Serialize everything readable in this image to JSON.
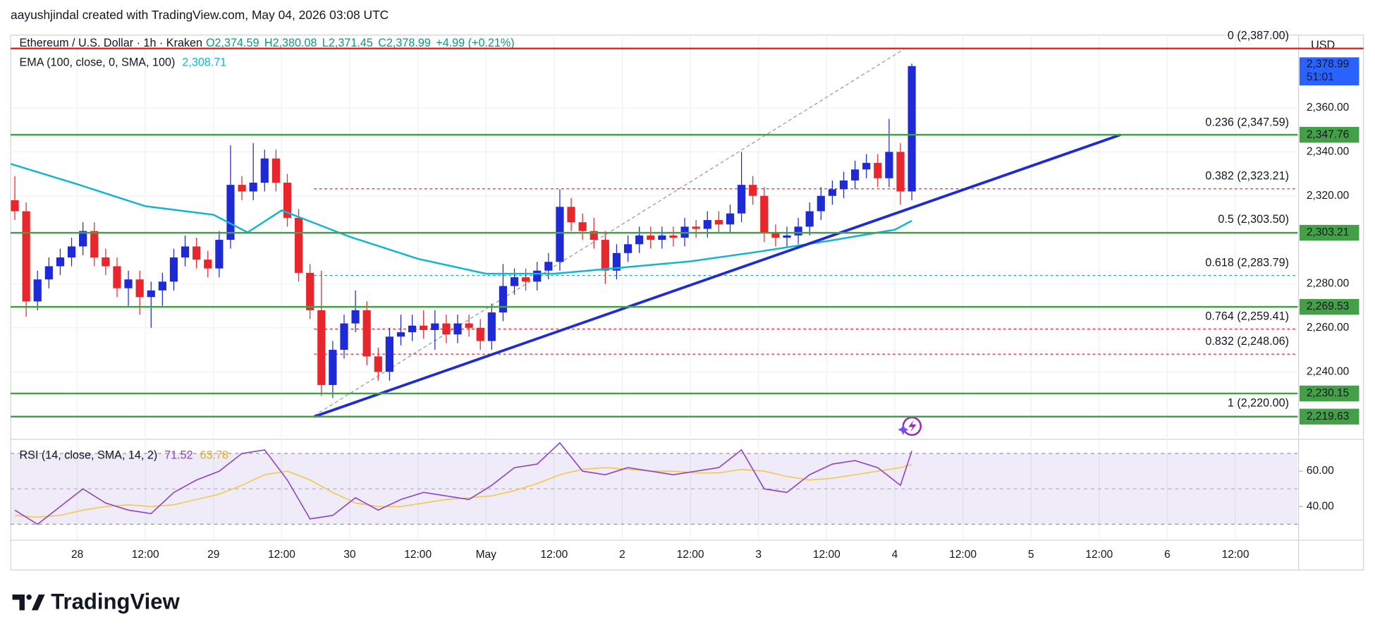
{
  "chart_data": {
    "type": "candlestick",
    "author": "aayushjindal created with TradingView.com, May 04, 2026 03:08 UTC",
    "brand": "TradingView",
    "currency": "USD",
    "header": {
      "symbol": "Ethereum / U.S. Dollar · 1h · Kraken",
      "ohlc": [
        "O2,374.59",
        "H2,380.08",
        "L2,371.45",
        "C2,378.99",
        "+4.99 (+0.21%)"
      ]
    },
    "up_color": "#1e2ad6",
    "down_color": "#e8262b",
    "xlim": [
      -11.74,
      214.98
    ],
    "xticks": [
      {
        "value": 0,
        "label": "28"
      },
      {
        "value": 12,
        "label": "12:00"
      },
      {
        "value": 24,
        "label": "29"
      },
      {
        "value": 36,
        "label": "12:00"
      },
      {
        "value": 48,
        "label": "30"
      },
      {
        "value": 60,
        "label": "12:00"
      },
      {
        "value": 72,
        "label": "May"
      },
      {
        "value": 84,
        "label": "12:00"
      },
      {
        "value": 96,
        "label": "2"
      },
      {
        "value": 108,
        "label": "12:00"
      },
      {
        "value": 120,
        "label": "3"
      },
      {
        "value": 132,
        "label": "12:00"
      },
      {
        "value": 144,
        "label": "4"
      },
      {
        "value": 156,
        "label": "12:00"
      },
      {
        "value": 168,
        "label": "5"
      },
      {
        "value": 180,
        "label": "12:00"
      },
      {
        "value": 192,
        "label": "6"
      },
      {
        "value": 204,
        "label": "12:00"
      }
    ],
    "ylim": [
      2209.7,
      2393.1
    ],
    "yticks": [
      {
        "value": 2240,
        "label": "2,240.00"
      },
      {
        "value": 2260,
        "label": "2,260.00"
      },
      {
        "value": 2280,
        "label": "2,280.00"
      },
      {
        "value": 2320,
        "label": "2,320.00"
      },
      {
        "value": 2340,
        "label": "2,340.00"
      },
      {
        "value": 2360,
        "label": "2,360.00"
      }
    ],
    "x": [
      -11,
      -9,
      -7,
      -5,
      -3,
      -1,
      1,
      3,
      5,
      7,
      9,
      11,
      13,
      15,
      17,
      19,
      21,
      23,
      25,
      27,
      29,
      31,
      33,
      35,
      37,
      39,
      41,
      43,
      45,
      47,
      49,
      51,
      53,
      55,
      57,
      59,
      61,
      63,
      65,
      67,
      69,
      71,
      73,
      75,
      77,
      79,
      81,
      83,
      85,
      87,
      89,
      91,
      93,
      95,
      97,
      99,
      101,
      103,
      105,
      107,
      109,
      111,
      113,
      115,
      117,
      119,
      121,
      123,
      125,
      127,
      129,
      131,
      133,
      135,
      137,
      139,
      141,
      143,
      145,
      147
    ],
    "open": [
      2318,
      2313,
      2272,
      2282,
      2288,
      2292,
      2297,
      2304,
      2292,
      2288,
      2278,
      2282,
      2274,
      2277,
      2281,
      2292,
      2297,
      2291,
      2287,
      2300,
      2325,
      2322,
      2326,
      2337,
      2326,
      2310,
      2285,
      2268,
      2234,
      2250,
      2262,
      2268,
      2247,
      2240,
      2256,
      2258,
      2261,
      2259,
      2262,
      2257,
      2262,
      2260,
      2254,
      2267,
      2279,
      2283,
      2281,
      2286,
      2290,
      2315,
      2308,
      2304,
      2300,
      2286,
      2294,
      2298,
      2302,
      2300,
      2302,
      2301,
      2306,
      2305,
      2309,
      2307,
      2312,
      2325,
      2320,
      2303,
      2301,
      2302,
      2306,
      2313,
      2320,
      2323,
      2327,
      2332,
      2335,
      2328,
      2340,
      2322
    ],
    "high": [
      2329,
      2317,
      2286,
      2292,
      2296,
      2301,
      2308,
      2308,
      2296,
      2292,
      2286,
      2286,
      2281,
      2285,
      2296,
      2302,
      2301,
      2295,
      2304,
      2343,
      2329,
      2344,
      2341,
      2341,
      2330,
      2314,
      2289,
      2286,
      2254,
      2266,
      2277,
      2272,
      2251,
      2260,
      2266,
      2266,
      2268,
      2268,
      2266,
      2266,
      2266,
      2264,
      2271,
      2289,
      2287,
      2287,
      2290,
      2294,
      2323,
      2319,
      2312,
      2310,
      2304,
      2298,
      2302,
      2306,
      2306,
      2306,
      2306,
      2310,
      2309,
      2313,
      2313,
      2316,
      2340,
      2329,
      2324,
      2307,
      2306,
      2310,
      2317,
      2324,
      2327,
      2331,
      2336,
      2339,
      2339,
      2355,
      2344,
      2380.08
    ],
    "low": [
      2309,
      2265,
      2268,
      2278,
      2284,
      2288,
      2293,
      2288,
      2284,
      2274,
      2270,
      2266,
      2260,
      2270,
      2277,
      2288,
      2287,
      2283,
      2283,
      2296,
      2318,
      2318,
      2322,
      2322,
      2306,
      2281,
      2264,
      2229,
      2228,
      2246,
      2258,
      2243,
      2236,
      2236,
      2252,
      2254,
      2255,
      2250,
      2253,
      2253,
      2256,
      2250,
      2250,
      2263,
      2275,
      2277,
      2277,
      2282,
      2286,
      2304,
      2300,
      2296,
      2280,
      2282,
      2290,
      2294,
      2296,
      2296,
      2297,
      2297,
      2301,
      2301,
      2303,
      2303,
      2308,
      2316,
      2299,
      2297,
      2297,
      2298,
      2302,
      2309,
      2316,
      2319,
      2323,
      2328,
      2324,
      2324,
      2316,
      2318
    ],
    "close": [
      2313,
      2272,
      2282,
      2288,
      2292,
      2297,
      2304,
      2292,
      2288,
      2278,
      2282,
      2274,
      2277,
      2281,
      2292,
      2297,
      2291,
      2287,
      2300,
      2325,
      2322,
      2326,
      2337,
      2326,
      2310,
      2285,
      2268,
      2234,
      2250,
      2262,
      2268,
      2247,
      2240,
      2256,
      2258,
      2261,
      2259,
      2262,
      2257,
      2262,
      2260,
      2254,
      2267,
      2279,
      2283,
      2281,
      2286,
      2290,
      2315,
      2308,
      2304,
      2300,
      2286,
      2294,
      2298,
      2302,
      2300,
      2302,
      2301,
      2306,
      2305,
      2309,
      2307,
      2312,
      2325,
      2320,
      2303,
      2301,
      2302,
      2306,
      2313,
      2320,
      2323,
      2327,
      2332,
      2335,
      2328,
      2340,
      2322,
      2378.99
    ],
    "ema": {
      "label": "EMA (100, close, 0, SMA, 100)",
      "value_label": "2,308.71",
      "color": "#12b5cf",
      "x": [
        -11.7,
        0,
        12,
        24,
        30,
        36,
        42,
        48,
        60,
        72,
        84,
        96,
        108,
        120,
        132,
        144,
        147
      ],
      "values": [
        2334.5,
        2325.3,
        2315.3,
        2311.4,
        2303.4,
        2313.4,
        2307.4,
        2301.4,
        2291.4,
        2284.6,
        2284.6,
        2287.4,
        2290.2,
        2294.6,
        2299.4,
        2304.6,
        2308.71
      ]
    },
    "level_color": "#43a047",
    "levels": [
      {
        "value": 2347.76,
        "label": "2,347.76"
      },
      {
        "value": 2303.21,
        "label": "2,303.21"
      },
      {
        "value": 2269.53,
        "label": "2,269.53"
      },
      {
        "value": 2230.15,
        "label": "2,230.15"
      },
      {
        "value": 2219.63,
        "label": "2,219.63"
      }
    ],
    "fib_anchor_x": [
      41.7,
      145.8
    ],
    "fib": [
      {
        "value": 2387,
        "label": "0 (2,387.00)",
        "color": "#787b86",
        "line": "solid",
        "line_color": "#e8262b"
      },
      {
        "value": 2347.59,
        "label": "0.236 (2,347.59)",
        "color": "#e8262b",
        "line": "none"
      },
      {
        "value": 2323.21,
        "label": "0.382 (2,323.21)",
        "color": "#e8262b",
        "line": "dashed",
        "line_color": "#e8262b"
      },
      {
        "value": 2303.5,
        "label": "0.5 (2,303.50)",
        "color": "#4a1f3c",
        "line": "none"
      },
      {
        "value": 2283.79,
        "label": "0.618 (2,283.79)",
        "color": "#22ab94",
        "line": "dashed",
        "line_color": "#22ab94"
      },
      {
        "value": 2259.41,
        "label": "0.764 (2,259.41)",
        "color": "#e8262b",
        "line": "dashed",
        "line_color": "#e8262b"
      },
      {
        "value": 2248.06,
        "label": "0.832 (2,248.06)",
        "color": "#e8262b",
        "line": "dashed",
        "line_color": "#e8262b"
      },
      {
        "value": 2220,
        "label": "1 (2,220.00)",
        "color": "#2962ff",
        "line": "none"
      }
    ],
    "trendline": {
      "color": "#1e2ad6",
      "x": [
        41.7,
        183.8
      ],
      "values": [
        2219.6,
        2347.8
      ]
    },
    "last_price": {
      "value": 2378.99,
      "label": "2,378.99",
      "countdown": "51:01",
      "color": "#2962ff"
    },
    "rsi": {
      "label": "RSI (14, close, SMA, 14, 2)",
      "value_label": "71.52",
      "sma_label": "63.78",
      "color": "#8e44c9",
      "sma_color": "#f2c94c",
      "ylim": [
        21.5,
        77.5
      ],
      "yticks": [
        {
          "value": 40,
          "label": "40.00"
        },
        {
          "value": 60,
          "label": "60.00"
        }
      ],
      "band": [
        30,
        70
      ],
      "mid": 50,
      "x": [
        -11,
        -7,
        -3,
        1,
        5,
        9,
        13,
        17,
        21,
        25,
        29,
        33,
        37,
        41,
        45,
        49,
        53,
        57,
        61,
        65,
        69,
        73,
        77,
        81,
        85,
        89,
        93,
        97,
        101,
        105,
        109,
        113,
        117,
        121,
        125,
        129,
        133,
        137,
        141,
        145,
        147
      ],
      "values": [
        38,
        30,
        40,
        50,
        42,
        38,
        36,
        48,
        55,
        60,
        70,
        72,
        55,
        33,
        35,
        45,
        38,
        44,
        48,
        46,
        44,
        52,
        62,
        64,
        76,
        60,
        58,
        62,
        60,
        58,
        60,
        62,
        72,
        50,
        48,
        58,
        64,
        66,
        62,
        52,
        71.52
      ],
      "sma_values": [
        35,
        34,
        35,
        38,
        40,
        41,
        40,
        41,
        44,
        47,
        52,
        58,
        60,
        55,
        48,
        42,
        40,
        40,
        42,
        44,
        45,
        46,
        49,
        53,
        58,
        61,
        62,
        61,
        60,
        60,
        59,
        59,
        61,
        60,
        57,
        55,
        56,
        58,
        60,
        62,
        63.78
      ]
    }
  }
}
